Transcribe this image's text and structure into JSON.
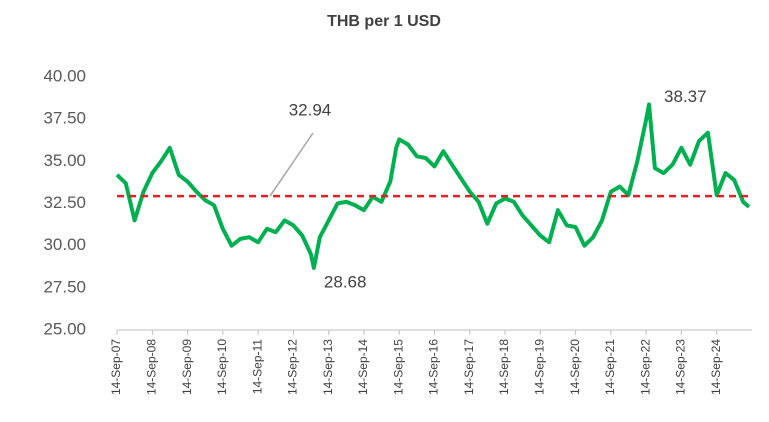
{
  "chart_data": {
    "type": "line",
    "title": "THB per 1 USD",
    "x": [
      "2007-09-14",
      "2007-12-14",
      "2008-03-14",
      "2008-06-14",
      "2008-09-14",
      "2008-12-14",
      "2009-03-14",
      "2009-06-14",
      "2009-09-14",
      "2009-12-14",
      "2010-03-14",
      "2010-06-14",
      "2010-09-14",
      "2010-12-14",
      "2011-03-14",
      "2011-06-14",
      "2011-09-14",
      "2011-12-14",
      "2012-03-14",
      "2012-06-14",
      "2012-09-14",
      "2012-12-14",
      "2013-03-14",
      "2013-04-14",
      "2013-06-14",
      "2013-09-14",
      "2013-12-14",
      "2014-03-14",
      "2014-06-14",
      "2014-09-14",
      "2014-12-14",
      "2015-03-14",
      "2015-06-14",
      "2015-08-14",
      "2015-09-14",
      "2015-12-14",
      "2016-03-14",
      "2016-06-14",
      "2016-09-14",
      "2016-12-14",
      "2017-03-14",
      "2017-06-14",
      "2017-09-14",
      "2017-12-14",
      "2018-03-14",
      "2018-06-14",
      "2018-09-14",
      "2018-12-14",
      "2019-03-14",
      "2019-06-14",
      "2019-09-14",
      "2019-12-14",
      "2020-03-14",
      "2020-06-14",
      "2020-09-14",
      "2020-12-14",
      "2021-03-14",
      "2021-06-14",
      "2021-09-14",
      "2021-12-14",
      "2022-03-14",
      "2022-06-14",
      "2022-09-14",
      "2022-10-14",
      "2022-12-14",
      "2023-03-14",
      "2023-06-14",
      "2023-09-14",
      "2023-12-14",
      "2024-03-14",
      "2024-06-14",
      "2024-09-14",
      "2024-12-14",
      "2025-03-14",
      "2025-06-14",
      "2025-08-14"
    ],
    "series": [
      {
        "name": "THB per 1 USD",
        "color": "#00b050",
        "values": [
          34.2,
          33.7,
          31.5,
          33.2,
          34.3,
          35.0,
          35.8,
          34.2,
          33.8,
          33.2,
          32.7,
          32.4,
          31.0,
          30.0,
          30.4,
          30.5,
          30.2,
          31.0,
          30.8,
          31.5,
          31.2,
          30.6,
          29.5,
          28.68,
          30.5,
          31.5,
          32.5,
          32.6,
          32.4,
          32.1,
          32.9,
          32.6,
          33.8,
          35.8,
          36.3,
          36.0,
          35.3,
          35.2,
          34.7,
          35.6,
          34.8,
          34.0,
          33.2,
          32.6,
          31.3,
          32.5,
          32.8,
          32.6,
          31.8,
          31.2,
          30.6,
          30.2,
          32.1,
          31.2,
          31.1,
          30.0,
          30.5,
          31.5,
          33.2,
          33.5,
          33.0,
          35.0,
          37.5,
          38.37,
          34.6,
          34.3,
          34.8,
          35.8,
          34.8,
          36.2,
          36.7,
          33.0,
          34.3,
          33.9,
          32.6,
          32.3
        ]
      }
    ],
    "mean_line": {
      "value": 32.94,
      "color": "#e31e24"
    },
    "xlim": [
      "2007-09-14",
      "2025-09-14"
    ],
    "xticks": [
      {
        "value": "2007-09-14",
        "label": "14-Sep-07"
      },
      {
        "value": "2008-09-14",
        "label": "14-Sep-08"
      },
      {
        "value": "2009-09-14",
        "label": "14-Sep-09"
      },
      {
        "value": "2010-09-14",
        "label": "14-Sep-10"
      },
      {
        "value": "2011-09-14",
        "label": "14-Sep-11"
      },
      {
        "value": "2012-09-14",
        "label": "14-Sep-12"
      },
      {
        "value": "2013-09-14",
        "label": "14-Sep-13"
      },
      {
        "value": "2014-09-14",
        "label": "14-Sep-14"
      },
      {
        "value": "2015-09-14",
        "label": "14-Sep-15"
      },
      {
        "value": "2016-09-14",
        "label": "14-Sep-16"
      },
      {
        "value": "2017-09-14",
        "label": "14-Sep-17"
      },
      {
        "value": "2018-09-14",
        "label": "14-Sep-18"
      },
      {
        "value": "2019-09-14",
        "label": "14-Sep-19"
      },
      {
        "value": "2020-09-14",
        "label": "14-Sep-20"
      },
      {
        "value": "2021-09-14",
        "label": "14-Sep-21"
      },
      {
        "value": "2022-09-14",
        "label": "14-Sep-22"
      },
      {
        "value": "2023-09-14",
        "label": "14-Sep-23"
      },
      {
        "value": "2024-09-14",
        "label": "14-Sep-24"
      }
    ],
    "ylim": [
      25,
      40
    ],
    "yticks": [
      {
        "value": 25,
        "label": "25.00"
      },
      {
        "value": 27.5,
        "label": "27.50"
      },
      {
        "value": 30,
        "label": "30.00"
      },
      {
        "value": 32.5,
        "label": "32.50"
      },
      {
        "value": 35,
        "label": "35.00"
      },
      {
        "value": 37.5,
        "label": "37.50"
      },
      {
        "value": 40,
        "label": "40.00"
      }
    ],
    "grid": false
  }
}
